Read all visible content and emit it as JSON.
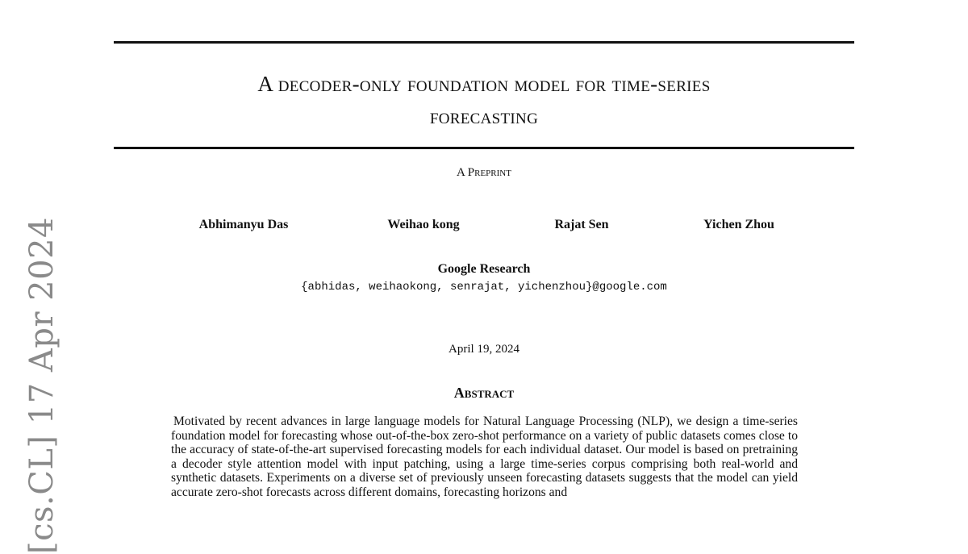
{
  "arxiv_stamp": "[cs.CL]  17 Apr 2024",
  "title_line1": "A decoder-only foundation model for time-series",
  "title_line2": "forecasting",
  "preprint_label": "A Preprint",
  "authors": [
    "Abhimanyu Das",
    "Weihao kong",
    "Rajat Sen",
    "Yichen Zhou"
  ],
  "affiliation": "Google Research",
  "email": "{abhidas, weihaokong, senrajat, yichenzhou}@google.com",
  "date": "April 19, 2024",
  "abstract_heading": "Abstract",
  "abstract_text": "Motivated by recent advances in large language models for Natural Language Processing (NLP), we design a time-series foundation model for forecasting whose out-of-the-box zero-shot performance on a variety of public datasets comes close to the accuracy of state-of-the-art supervised forecasting models for each individual dataset. Our model is based on pretraining a decoder style attention model with input patching, using a large time-series corpus comprising both real-world and synthetic datasets. Experiments on a diverse set of previously unseen forecasting datasets suggests that the model can yield accurate zero-shot forecasts across different domains, forecasting horizons and"
}
